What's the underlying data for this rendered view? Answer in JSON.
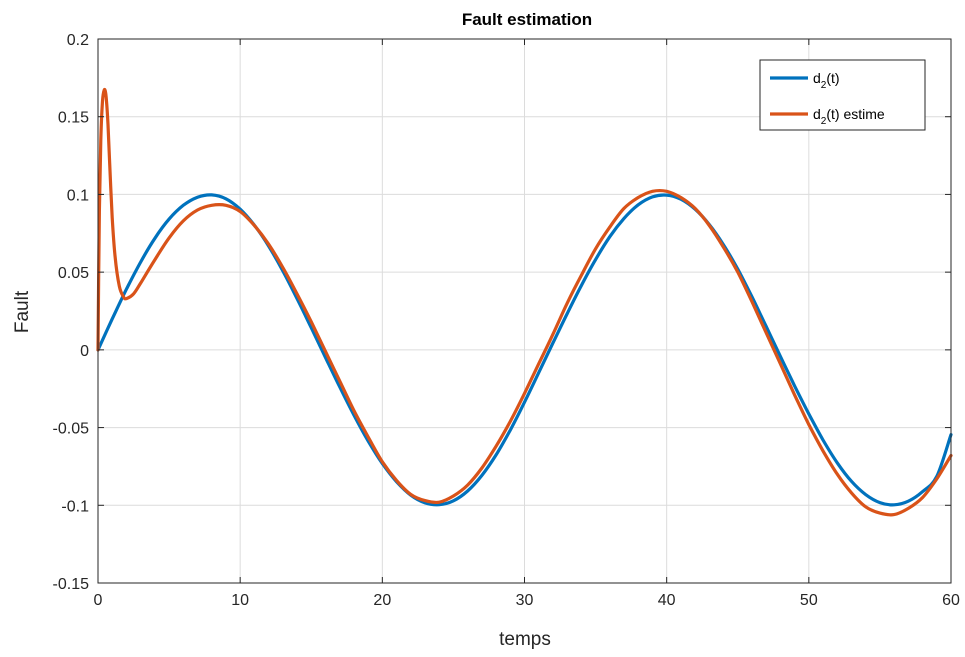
{
  "chart_data": {
    "type": "line",
    "title": "Fault estimation",
    "xlabel": "temps",
    "ylabel": "Fault",
    "xlim": [
      0,
      60
    ],
    "ylim": [
      -0.15,
      0.2
    ],
    "xticks": [
      0,
      10,
      20,
      30,
      40,
      50,
      60
    ],
    "xtick_labels": [
      "0",
      "10",
      "20",
      "30",
      "40",
      "50",
      "60"
    ],
    "yticks": [
      -0.15,
      -0.1,
      -0.05,
      0,
      0.05,
      0.1,
      0.15,
      0.2
    ],
    "ytick_labels": [
      "-0.15",
      "-0.1",
      "-0.05",
      "0",
      "0.05",
      "0.1",
      "0.15",
      "0.2"
    ],
    "grid": true,
    "legend_position": "top-right",
    "series": [
      {
        "name": "d2(t)",
        "legend_base": "d",
        "legend_sub": "2",
        "legend_rest": "(t)",
        "color": "#0072BD",
        "x": [
          0,
          1,
          2,
          3,
          4,
          5,
          6,
          7,
          8,
          9,
          10,
          11,
          12,
          13,
          14,
          15,
          16,
          17,
          18,
          19,
          20,
          21,
          22,
          23,
          24,
          25,
          26,
          27,
          28,
          29,
          30,
          31,
          32,
          33,
          34,
          35,
          36,
          37,
          38,
          39,
          40,
          41,
          42,
          43,
          44,
          45,
          46,
          47,
          48,
          49,
          50,
          51,
          52,
          53,
          54,
          55,
          56,
          57,
          58,
          59,
          60
        ],
        "y": [
          0,
          0.0199,
          0.039,
          0.0565,
          0.0718,
          0.0841,
          0.093,
          0.0982,
          0.0997,
          0.0972,
          0.0905,
          0.0802,
          0.0668,
          0.0508,
          0.033,
          0.0142,
          -0.0049,
          -0.0238,
          -0.0419,
          -0.0586,
          -0.0731,
          -0.0848,
          -0.0935,
          -0.0984,
          -0.0996,
          -0.0971,
          -0.0908,
          -0.0808,
          -0.0676,
          -0.0516,
          -0.0337,
          -0.0147,
          0.0044,
          0.0233,
          0.0414,
          0.0581,
          0.0728,
          0.0846,
          0.0933,
          0.0984,
          0.0996,
          0.0969,
          0.0905,
          0.0806,
          0.0676,
          0.0519,
          0.0341,
          0.015,
          -0.0042,
          -0.0232,
          -0.0412,
          -0.058,
          -0.0727,
          -0.0846,
          -0.0931,
          -0.0983,
          -0.0997,
          -0.0974,
          -0.0912,
          -0.0814,
          -0.0545
        ]
      },
      {
        "name": "d2(t) estime",
        "legend_base": "d",
        "legend_sub": "2",
        "legend_rest": "(t) estime",
        "color": "#D95319",
        "x": [
          0,
          0.1,
          0.2,
          0.3,
          0.4,
          0.5,
          0.6,
          0.7,
          0.8,
          1,
          1.2,
          1.5,
          1.8,
          2,
          2.5,
          3,
          4,
          5,
          6,
          7,
          8,
          9,
          10,
          11,
          12,
          13,
          14,
          15,
          16,
          17,
          18,
          19,
          20,
          21,
          22,
          23,
          24,
          25,
          26,
          27,
          28,
          29,
          30,
          31,
          32,
          33,
          34,
          35,
          36,
          37,
          38,
          39,
          40,
          41,
          42,
          43,
          44,
          45,
          46,
          47,
          48,
          49,
          50,
          51,
          52,
          53,
          54,
          55,
          56,
          57,
          58,
          59,
          60
        ],
        "y": [
          0,
          0.09,
          0.135,
          0.158,
          0.166,
          0.167,
          0.16,
          0.145,
          0.124,
          0.085,
          0.06,
          0.041,
          0.034,
          0.033,
          0.036,
          0.043,
          0.058,
          0.072,
          0.083,
          0.09,
          0.093,
          0.093,
          0.089,
          0.08,
          0.068,
          0.053,
          0.036,
          0.018,
          -0.001,
          -0.02,
          -0.039,
          -0.056,
          -0.072,
          -0.084,
          -0.093,
          -0.097,
          -0.098,
          -0.094,
          -0.087,
          -0.076,
          -0.062,
          -0.046,
          -0.028,
          -0.009,
          0.01,
          0.03,
          0.048,
          0.065,
          0.079,
          0.091,
          0.098,
          0.102,
          0.102,
          0.098,
          0.091,
          0.08,
          0.066,
          0.05,
          0.031,
          0.011,
          -0.009,
          -0.029,
          -0.048,
          -0.065,
          -0.08,
          -0.092,
          -0.101,
          -0.105,
          -0.106,
          -0.102,
          -0.095,
          -0.083,
          -0.068
        ]
      }
    ]
  }
}
